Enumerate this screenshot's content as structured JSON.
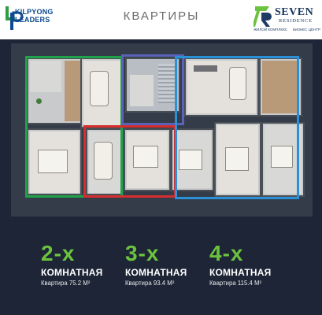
{
  "header": {
    "left_logo": {
      "line1": "KILPYONG",
      "line2": "LEADERS"
    },
    "title": "КВАРТИРЫ",
    "right_logo": {
      "brand_line1": "SEVEN",
      "brand_line2": "RESIDENCE",
      "sub_left": "ЖИЛОЙ КОМПЛЕКС",
      "sub_right": "БИЗНЕС ЦЕНТР"
    }
  },
  "apartments": [
    {
      "rooms": "2-х",
      "type": "КОМНАТНАЯ",
      "area_text": "Квартира 75.2 М²",
      "outline_color": "#1fa24a"
    },
    {
      "rooms": "3-х",
      "type": "КОМНАТНАЯ",
      "area_text": "Квартира 93.4 М²",
      "outline_color": "#d62e2e"
    },
    {
      "rooms": "4-х",
      "type": "КОМНАТНАЯ",
      "area_text": "Квартира 115.4 М²",
      "outline_color": "#2a90d8"
    }
  ],
  "colors": {
    "accent_green": "#6bc23e",
    "background_dark": "#1d2536",
    "outline_purple": "#5a63b8"
  }
}
